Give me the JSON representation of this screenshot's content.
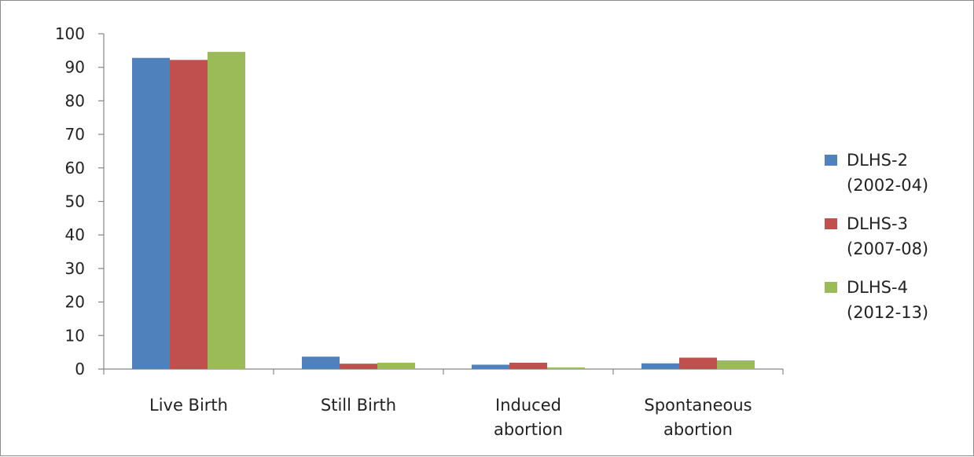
{
  "chart_data": {
    "type": "bar",
    "categories": [
      "Live Birth",
      "Still Birth",
      "Induced abortion",
      "Spontaneous abortion"
    ],
    "category_lines": [
      [
        "Live Birth"
      ],
      [
        "Still Birth"
      ],
      [
        "Induced",
        "abortion"
      ],
      [
        "Spontaneous",
        "abortion"
      ]
    ],
    "series": [
      {
        "name": "DLHS-2 (2002-04)",
        "name_lines": [
          "DLHS-2",
          "(2002-04)"
        ],
        "color": "#4F81BD",
        "values": [
          92.8,
          3.7,
          1.3,
          1.7
        ]
      },
      {
        "name": "DLHS-3 (2007-08)",
        "name_lines": [
          "DLHS-3",
          "(2007-08)"
        ],
        "color": "#C0504D",
        "values": [
          92.2,
          1.6,
          1.9,
          3.4
        ]
      },
      {
        "name": "DLHS-4 (2012-13)",
        "name_lines": [
          "DLHS-4",
          "(2012-13)"
        ],
        "color": "#9BBB59",
        "values": [
          94.6,
          1.9,
          0.5,
          2.6
        ]
      }
    ],
    "yticks": [
      0,
      10,
      20,
      30,
      40,
      50,
      60,
      70,
      80,
      90,
      100
    ],
    "ylim": [
      0,
      100
    ],
    "grid": false,
    "legend": "right",
    "title": "",
    "xlabel": "",
    "ylabel": ""
  }
}
